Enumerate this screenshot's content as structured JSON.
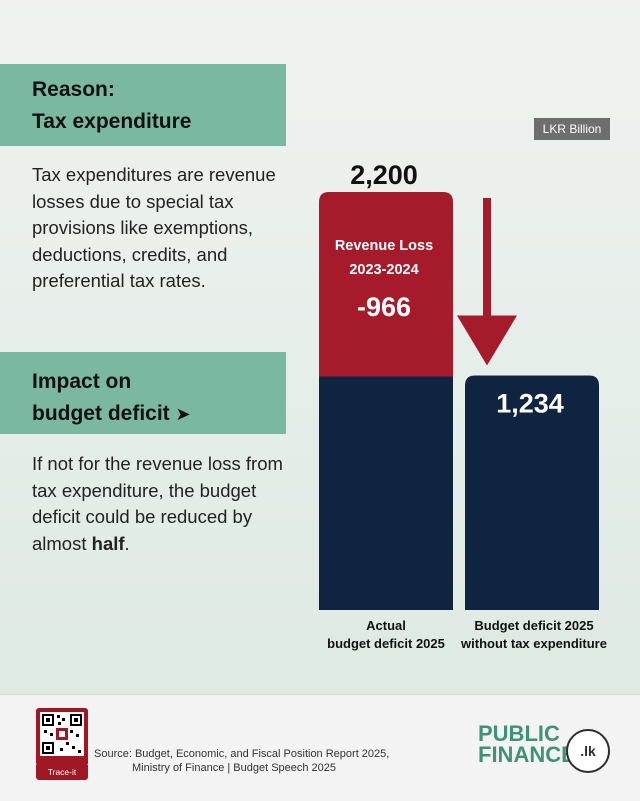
{
  "reason": {
    "heading_line1": "Reason:",
    "heading_line2": "Tax expenditure",
    "text": "Tax expenditures are revenue losses due to special tax provisions like exemptions, deductions, credits, and preferential tax rates."
  },
  "impact": {
    "heading_line1": "Impact on",
    "heading_line2": "budget deficit",
    "arrow": "➤",
    "text_before": "If not for the revenue loss from tax expenditure, the budget deficit could be reduced by almost ",
    "text_bold": "half",
    "text_after": "."
  },
  "unit": "LKR Billion",
  "colors": {
    "teal_box": "#7ab8a2",
    "navy": "#0e2440",
    "crimson": "#a51b2b",
    "logo_green": "#3f9277"
  },
  "chart_data": {
    "type": "bar",
    "unit": "LKR Billion",
    "categories": [
      "Actual budget deficit 2025",
      "Budget deficit 2025 without tax expenditure"
    ],
    "category_lines": [
      [
        "Actual",
        "budget deficit 2025"
      ],
      [
        "Budget deficit 2025",
        "without tax expenditure"
      ]
    ],
    "values": [
      2200,
      1234
    ],
    "value_labels": [
      "2,200",
      "1,234"
    ],
    "stack_segment": {
      "label_line1": "Revenue Loss",
      "label_line2": "2023-2024",
      "value": -966,
      "value_label": "-966"
    }
  },
  "footer": {
    "qr_label": "Trace-it",
    "source_line1": "Source: Budget, Economic, and Fiscal Position Report 2025,",
    "source_line2": "Ministry of Finance | Budget Speech 2025",
    "logo_line1": "PUBLIC",
    "logo_line2": "FINANCE",
    "logo_suffix": ".lk"
  }
}
